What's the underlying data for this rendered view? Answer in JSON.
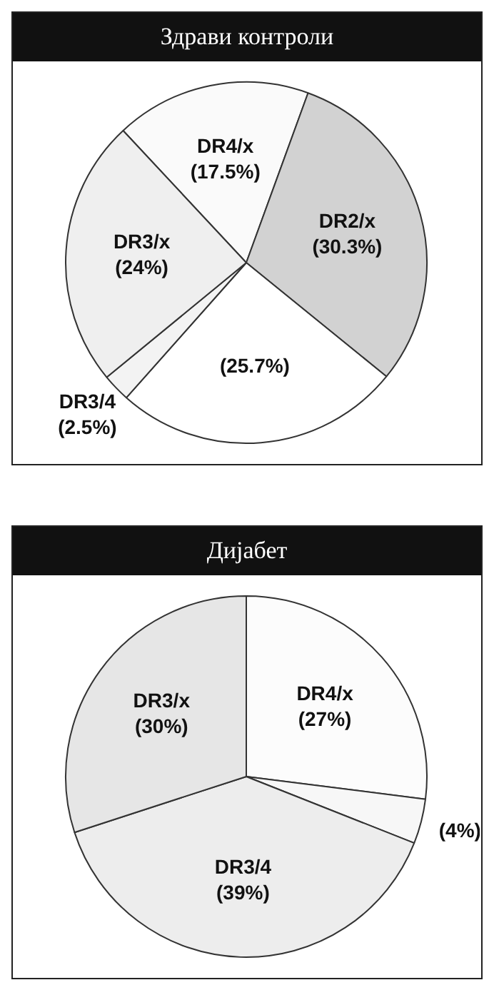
{
  "chart_data": [
    {
      "type": "pie",
      "title": "Здрави контроли",
      "categories": [
        "DR4/x",
        "DR2/x",
        null,
        "DR3/4",
        "DR3/x"
      ],
      "values": [
        17.5,
        30.3,
        25.7,
        2.5,
        24
      ],
      "colors": [
        "#fafafa",
        "#d2d2d2",
        "#ffffff",
        "#f3f3f3",
        "#efefef"
      ],
      "value_labels": [
        "(17.5%)",
        "(30.3%)",
        "(25.7%)",
        "(2.5%)",
        "(24%)"
      ],
      "legend": false
    },
    {
      "type": "pie",
      "title": "Дијабет",
      "categories": [
        "DR4/x",
        null,
        "DR3/4",
        "DR3/x"
      ],
      "values": [
        27,
        4,
        39,
        30
      ],
      "colors": [
        "#fcfcfc",
        "#f7f7f7",
        "#ededed",
        "#e6e6e6"
      ],
      "value_labels": [
        "(27%)",
        "(4%)",
        "(39%)",
        "(30%)"
      ],
      "legend": false
    }
  ]
}
